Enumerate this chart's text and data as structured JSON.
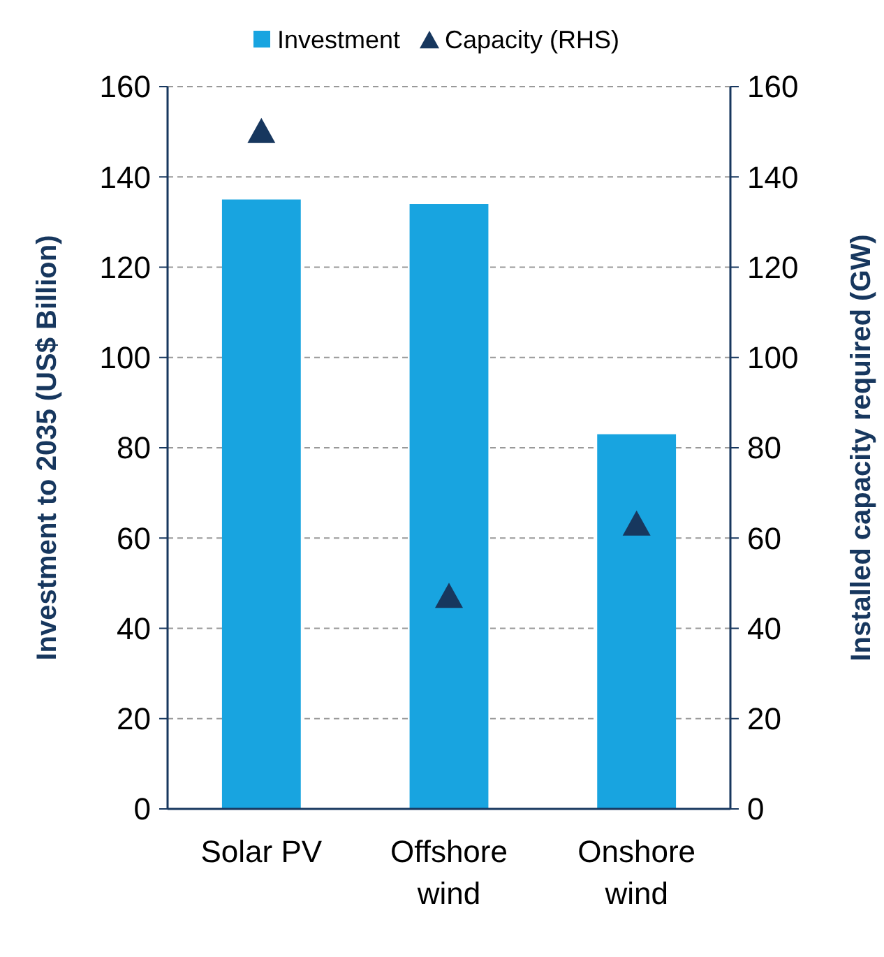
{
  "chart_data": {
    "type": "bar",
    "categories": [
      "Solar PV",
      "Offshore wind",
      "Onshore wind"
    ],
    "series": [
      {
        "name": "Investment",
        "color": "#18a4e0",
        "values": [
          135,
          134,
          83
        ]
      },
      {
        "name": "Capacity (RHS)",
        "type": "scatter",
        "axis": "y2",
        "color": "#17375e",
        "values": [
          150,
          47,
          63
        ]
      }
    ],
    "ylabel": "Investment to 2035 (US$ Billion)",
    "y2label": "Installed capacity required (GW)",
    "ylim": [
      0,
      160
    ],
    "yticks": [
      0,
      20,
      40,
      60,
      80,
      100,
      120,
      140,
      160
    ],
    "y2lim": [
      0,
      160
    ],
    "y2ticks": [
      0,
      20,
      40,
      60,
      80,
      100,
      120,
      140,
      160
    ],
    "grid": "y",
    "legend": "top",
    "marker": "triangle"
  }
}
